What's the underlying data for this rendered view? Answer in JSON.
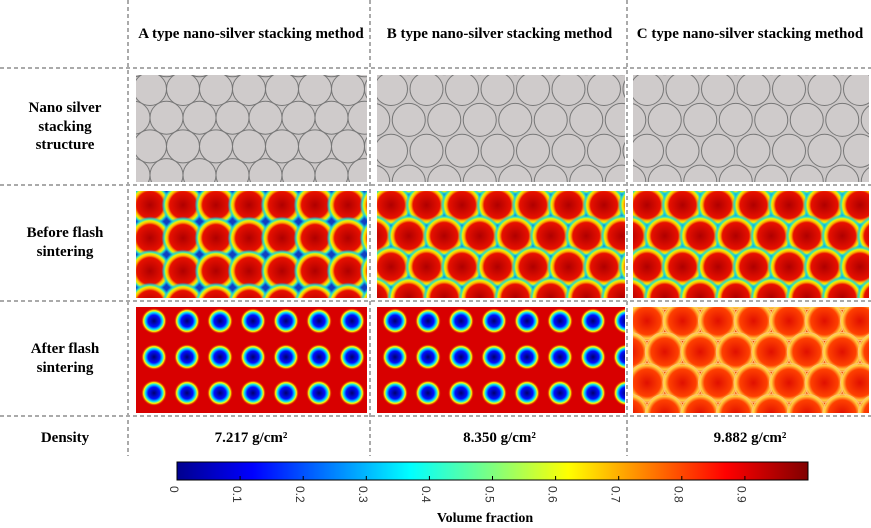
{
  "columns": [
    "A type nano-silver stacking method",
    "B type nano-silver stacking method",
    "C type nano-silver stacking method"
  ],
  "rows": [
    "Nano silver stacking structure",
    "Before flash sintering",
    "After flash sintering",
    "Density"
  ],
  "density": [
    "7.217 g/cm²",
    "8.350 g/cm²",
    "9.882 g/cm²"
  ],
  "colorbar": {
    "label": "Volume fraction",
    "lim": [
      0,
      1
    ],
    "ticks": [
      0,
      0.1,
      0.2,
      0.3,
      0.4,
      0.5,
      0.6,
      0.7,
      0.8,
      0.9
    ]
  }
}
